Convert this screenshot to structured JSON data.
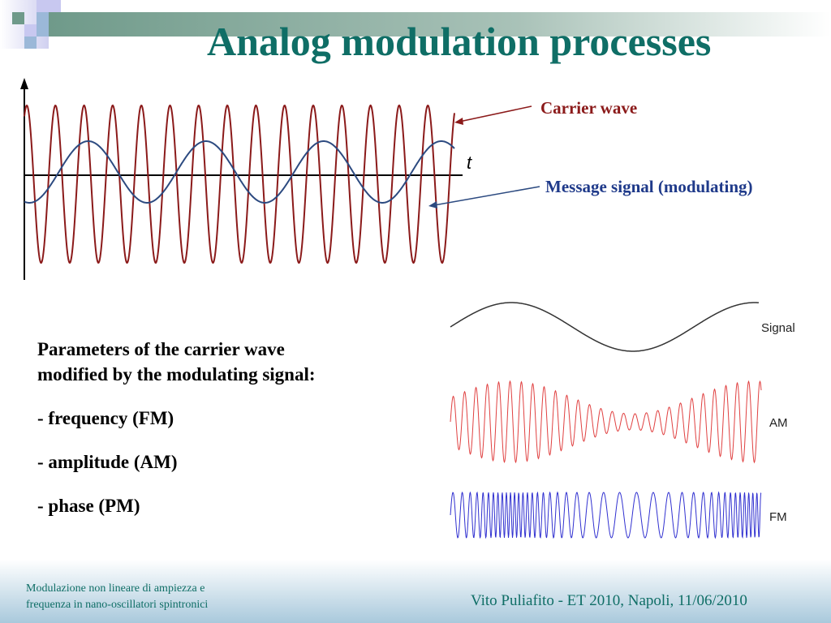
{
  "title": "Analog modulation processes",
  "diagram": {
    "axis_label": "t",
    "carrier_label": "Carrier wave",
    "message_label": "Message signal (modulating)",
    "carrier_color": "#8b1a1a",
    "message_color": "#2c4a80"
  },
  "modulation_figure": {
    "signal_label": "Signal",
    "am_label": "AM",
    "fm_label": "FM",
    "am_color": "#e04040",
    "fm_color": "#3030d0"
  },
  "params": {
    "intro": "Parameters of the carrier wave modified by the modulating signal:",
    "items": [
      "- frequency (FM)",
      "- amplitude (AM)",
      "- phase (PM)"
    ]
  },
  "footer": {
    "left_line1": "Modulazione non lineare di ampiezza e",
    "left_line2": "frequenza in nano-oscillatori spintronici",
    "right": "Vito Puliafito  -  ET 2010, Napoli, 11/06/2010"
  }
}
